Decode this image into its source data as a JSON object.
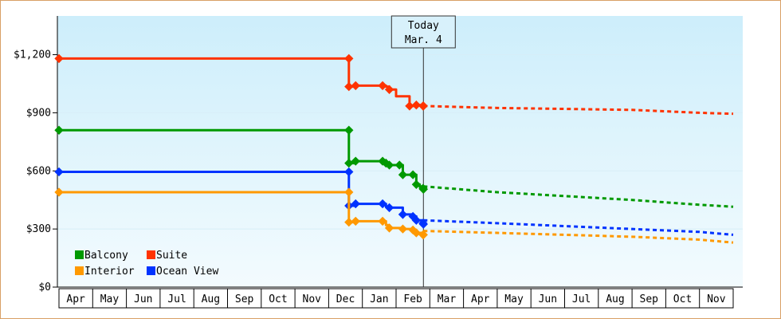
{
  "chart_data": {
    "type": "line",
    "title": "",
    "xlabel": "",
    "ylabel": "",
    "ylim": [
      0,
      1400
    ],
    "y_ticks": [
      {
        "value": 0,
        "label": "$0"
      },
      {
        "value": 300,
        "label": "$300"
      },
      {
        "value": 600,
        "label": "$600"
      },
      {
        "value": 900,
        "label": "$900"
      },
      {
        "value": 1200,
        "label": "$1,200"
      }
    ],
    "x_months": [
      "Apr",
      "May",
      "Jun",
      "Jul",
      "Aug",
      "Sep",
      "Oct",
      "Nov",
      "Dec",
      "Jan",
      "Feb",
      "Mar",
      "Apr",
      "May",
      "Jun",
      "Jul",
      "Aug",
      "Sep",
      "Oct",
      "Nov"
    ],
    "today": {
      "line1": "Today",
      "line2": "Mar. 4",
      "x": 11.0
    },
    "legend_position": "bottom-left",
    "grid": true,
    "background_gradient": [
      "#cdeefb",
      "#f3fbfe"
    ],
    "series": [
      {
        "name": "Suite",
        "color": "#ff3300",
        "points": [
          [
            0.0,
            1180
          ],
          [
            8.6,
            1180
          ],
          [
            8.6,
            1035
          ],
          [
            8.8,
            1040
          ],
          [
            9.6,
            1040
          ],
          [
            9.7,
            1035
          ],
          [
            9.8,
            1020
          ],
          [
            10.0,
            985
          ],
          [
            10.3,
            985
          ],
          [
            10.4,
            935
          ],
          [
            10.6,
            940
          ],
          [
            10.8,
            935
          ],
          [
            11.0,
            935
          ]
        ],
        "markers": [
          [
            0.0,
            1180
          ],
          [
            8.6,
            1180
          ],
          [
            8.6,
            1035
          ],
          [
            8.8,
            1040
          ],
          [
            9.6,
            1040
          ],
          [
            9.8,
            1020
          ],
          [
            10.4,
            935
          ],
          [
            10.6,
            940
          ],
          [
            10.8,
            935
          ],
          [
            11.0,
            935
          ]
        ],
        "forecast": [
          [
            11.0,
            935
          ],
          [
            13.0,
            925
          ],
          [
            15.0,
            920
          ],
          [
            17.0,
            915
          ],
          [
            19.0,
            900
          ],
          [
            20.0,
            895
          ]
        ]
      },
      {
        "name": "Balcony",
        "color": "#009900",
        "points": [
          [
            0.0,
            810
          ],
          [
            8.6,
            810
          ],
          [
            8.6,
            640
          ],
          [
            8.8,
            650
          ],
          [
            9.6,
            650
          ],
          [
            9.7,
            640
          ],
          [
            9.8,
            630
          ],
          [
            10.1,
            630
          ],
          [
            10.2,
            580
          ],
          [
            10.5,
            580
          ],
          [
            10.6,
            530
          ],
          [
            10.7,
            520
          ],
          [
            10.8,
            510
          ],
          [
            11.0,
            505
          ]
        ],
        "markers": [
          [
            0.0,
            810
          ],
          [
            8.6,
            810
          ],
          [
            8.6,
            640
          ],
          [
            8.8,
            650
          ],
          [
            9.6,
            650
          ],
          [
            9.7,
            640
          ],
          [
            9.8,
            630
          ],
          [
            10.1,
            630
          ],
          [
            10.2,
            580
          ],
          [
            10.5,
            580
          ],
          [
            10.6,
            530
          ],
          [
            10.8,
            510
          ],
          [
            11.0,
            505
          ]
        ],
        "forecast": [
          [
            11.0,
            520
          ],
          [
            13.0,
            490
          ],
          [
            15.0,
            470
          ],
          [
            17.0,
            450
          ],
          [
            19.0,
            425
          ],
          [
            20.0,
            415
          ]
        ]
      },
      {
        "name": "Ocean View",
        "color": "#0033ff",
        "points": [
          [
            0.0,
            595
          ],
          [
            8.6,
            595
          ],
          [
            8.6,
            420
          ],
          [
            8.8,
            430
          ],
          [
            9.6,
            430
          ],
          [
            9.7,
            415
          ],
          [
            9.8,
            410
          ],
          [
            10.1,
            410
          ],
          [
            10.2,
            375
          ],
          [
            10.5,
            365
          ],
          [
            10.6,
            345
          ],
          [
            10.8,
            330
          ],
          [
            11.0,
            325
          ]
        ],
        "markers": [
          [
            0.0,
            595
          ],
          [
            8.6,
            595
          ],
          [
            8.6,
            420
          ],
          [
            8.8,
            430
          ],
          [
            9.6,
            430
          ],
          [
            9.8,
            410
          ],
          [
            10.2,
            375
          ],
          [
            10.5,
            365
          ],
          [
            10.6,
            345
          ],
          [
            10.8,
            330
          ],
          [
            11.0,
            325
          ]
        ],
        "forecast": [
          [
            11.0,
            345
          ],
          [
            13.0,
            330
          ],
          [
            15.0,
            315
          ],
          [
            17.0,
            300
          ],
          [
            19.0,
            285
          ],
          [
            20.0,
            270
          ]
        ]
      },
      {
        "name": "Interior",
        "color": "#ff9900",
        "points": [
          [
            0.0,
            490
          ],
          [
            8.6,
            490
          ],
          [
            8.6,
            335
          ],
          [
            8.8,
            340
          ],
          [
            9.6,
            340
          ],
          [
            9.7,
            320
          ],
          [
            9.8,
            305
          ],
          [
            10.1,
            305
          ],
          [
            10.2,
            300
          ],
          [
            10.5,
            295
          ],
          [
            10.6,
            280
          ],
          [
            10.8,
            270
          ],
          [
            11.0,
            270
          ]
        ],
        "markers": [
          [
            0.0,
            490
          ],
          [
            8.6,
            490
          ],
          [
            8.6,
            335
          ],
          [
            8.8,
            340
          ],
          [
            9.6,
            340
          ],
          [
            9.8,
            305
          ],
          [
            10.2,
            300
          ],
          [
            10.5,
            295
          ],
          [
            10.6,
            280
          ],
          [
            10.8,
            270
          ],
          [
            11.0,
            270
          ]
        ],
        "forecast": [
          [
            11.0,
            290
          ],
          [
            13.0,
            280
          ],
          [
            15.0,
            270
          ],
          [
            17.0,
            260
          ],
          [
            19.0,
            245
          ],
          [
            20.0,
            230
          ]
        ]
      }
    ],
    "legend": [
      {
        "name": "Balcony",
        "color": "#009900"
      },
      {
        "name": "Suite",
        "color": "#ff3300"
      },
      {
        "name": "Interior",
        "color": "#ff9900"
      },
      {
        "name": "Ocean View",
        "color": "#0033ff"
      }
    ]
  }
}
